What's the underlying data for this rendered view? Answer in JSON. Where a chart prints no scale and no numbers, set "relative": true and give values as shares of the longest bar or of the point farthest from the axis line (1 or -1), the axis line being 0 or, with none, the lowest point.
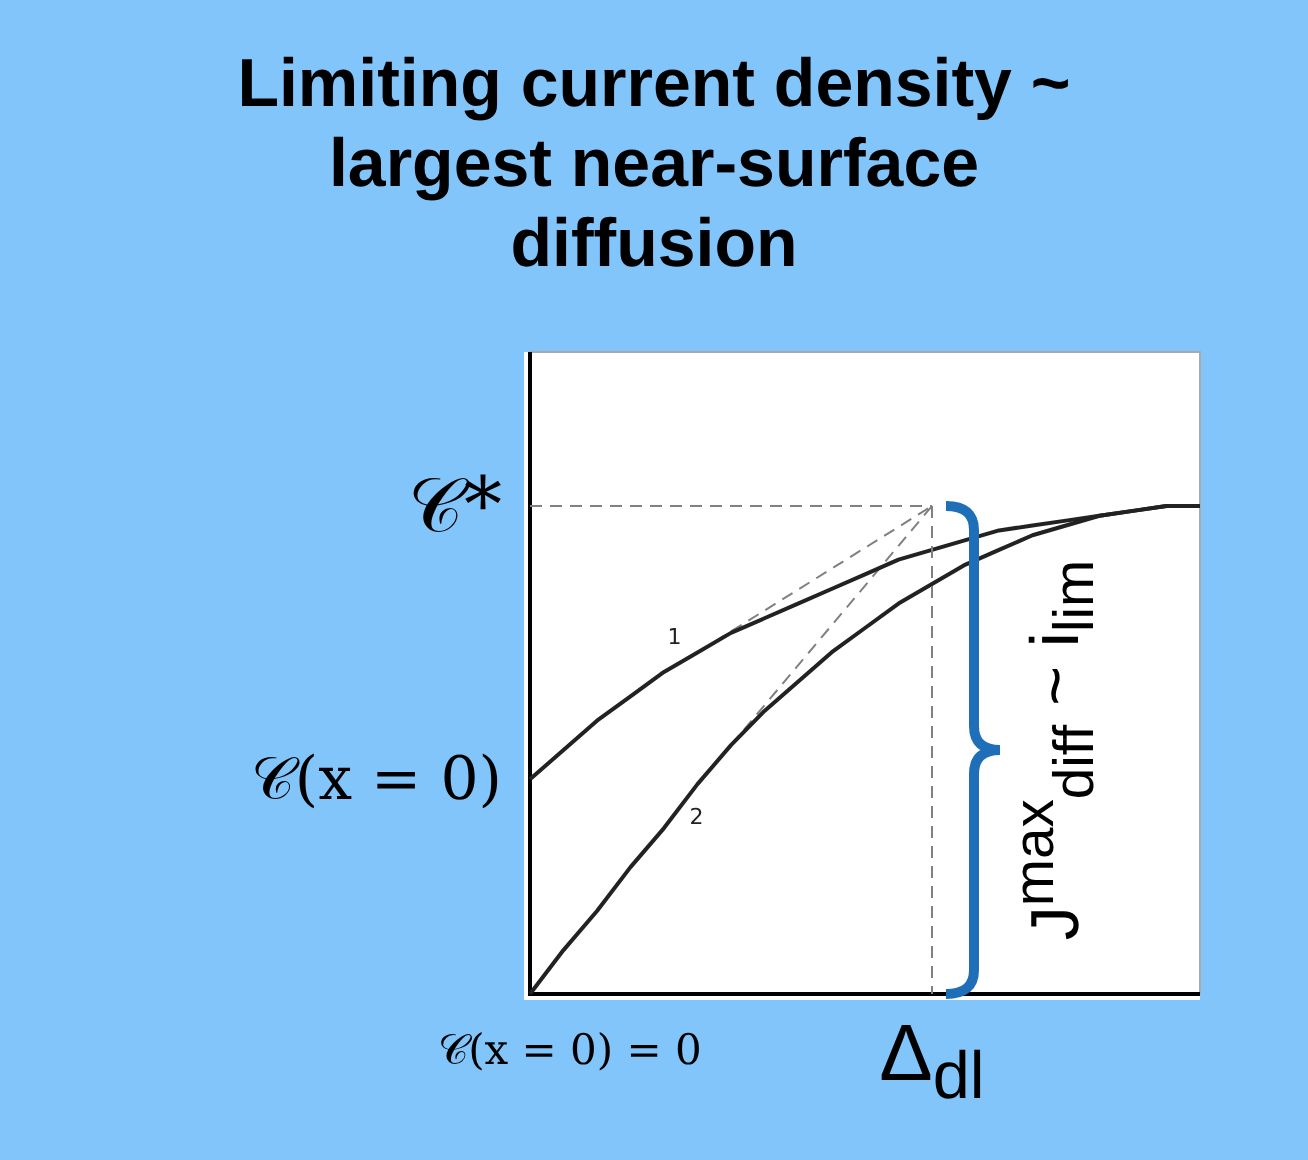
{
  "chart_data": {
    "type": "line",
    "title": "Limiting current density ~ largest near-surface diffusion",
    "relative": true,
    "legend": false,
    "marker": "none",
    "categories": [
      null,
      null,
      null,
      null,
      null,
      null,
      null,
      null,
      null,
      null,
      null,
      null,
      null,
      null,
      null,
      null,
      null,
      null,
      null,
      null,
      null
    ],
    "series": [
      {
        "name": "1",
        "color": "#222222",
        "values": [
          0.44,
          0.5,
          0.56,
          0.61,
          0.66,
          0.7,
          0.74,
          0.77,
          0.8,
          0.83,
          0.86,
          0.89,
          0.91,
          0.93,
          0.95,
          0.96,
          0.97,
          0.98,
          0.99,
          1,
          1
        ]
      },
      {
        "name": "2",
        "color": "#222222",
        "values": [
          0,
          0.09,
          0.17,
          0.26,
          0.34,
          0.43,
          0.51,
          0.58,
          0.64,
          0.7,
          0.75,
          0.8,
          0.84,
          0.88,
          0.91,
          0.94,
          0.96,
          0.98,
          0.99,
          1,
          1
        ]
      },
      {
        "color": "#808080",
        "line_style": "dashed",
        "values": [
          null,
          null,
          null,
          null,
          null,
          0.7,
          null,
          null,
          null,
          null,
          null,
          null,
          1,
          null,
          null,
          null,
          null,
          null,
          null,
          null,
          null
        ]
      },
      {
        "color": "#808080",
        "line_style": "dashed",
        "values": [
          null,
          null,
          null,
          null,
          null,
          null,
          0.51,
          null,
          null,
          null,
          null,
          null,
          1,
          null,
          null,
          null,
          null,
          null,
          null,
          null,
          null
        ]
      }
    ],
    "ref_lines": [
      {
        "axis": "y",
        "value": 1,
        "label": "𝒞*",
        "color": "#808080",
        "line_style": "dashed"
      }
    ],
    "annotations": [
      "𝒞(x = 0)",
      "𝒞(x = 0) = 0",
      "Δ$_{dl}$",
      "J$^{max}$$_{diff}$ ~ i$_{lim}$"
    ]
  }
}
